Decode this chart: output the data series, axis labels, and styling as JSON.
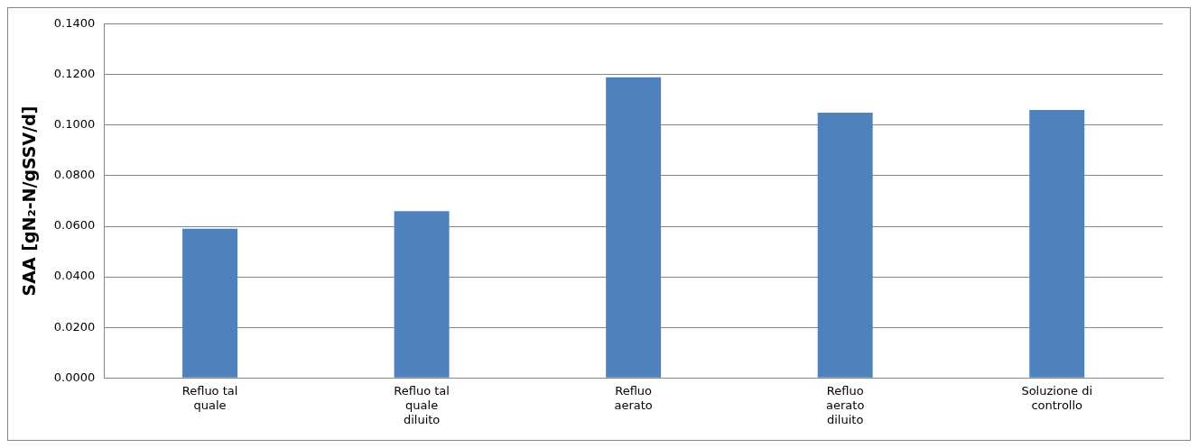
{
  "chart_data": {
    "type": "bar",
    "ylabel": "SAA [gN₂-N/gSSV/d]",
    "categories": [
      "Refluo tal quale",
      "Refluo tal quale diluito",
      "Refluo aerato",
      "Refluo aerato diluito",
      "Soluzione di controllo"
    ],
    "values": [
      0.059,
      0.066,
      0.119,
      0.105,
      0.106
    ],
    "color": "#4f81bd",
    "ylim": [
      0,
      0.14
    ],
    "yticks": [
      {
        "value": 0,
        "label": "0.0000"
      },
      {
        "value": 0.02,
        "label": "0.0200"
      },
      {
        "value": 0.04,
        "label": "0.0400"
      },
      {
        "value": 0.06,
        "label": "0.0600"
      },
      {
        "value": 0.08,
        "label": "0.0800"
      },
      {
        "value": 0.1,
        "label": "0.1000"
      },
      {
        "value": 0.12,
        "label": "0.1200"
      },
      {
        "value": 0.14,
        "label": "0.1400"
      }
    ],
    "grid": "y",
    "legend": false
  }
}
